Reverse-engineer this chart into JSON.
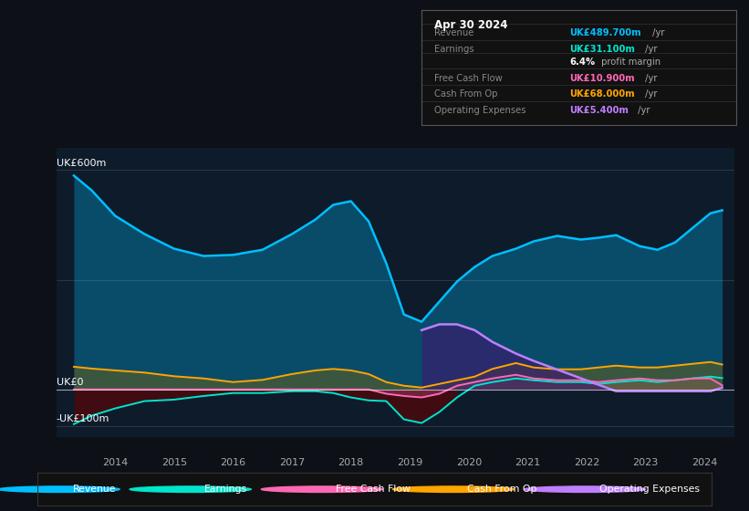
{
  "bg_color": "#0d1117",
  "plot_bg_color": "#0d1b2a",
  "info_box": {
    "date": "Apr 30 2024",
    "rows": [
      {
        "label": "Revenue",
        "value": "UK£489.700m",
        "unit": " /yr",
        "color": "#00bfff"
      },
      {
        "label": "Earnings",
        "value": "UK£31.100m",
        "unit": " /yr",
        "color": "#00e5cc"
      },
      {
        "label": "",
        "value": "6.4%",
        "unit": " profit margin",
        "color": "#ffffff"
      },
      {
        "label": "Free Cash Flow",
        "value": "UK£10.900m",
        "unit": " /yr",
        "color": "#ff69b4"
      },
      {
        "label": "Cash From Op",
        "value": "UK£68.000m",
        "unit": " /yr",
        "color": "#ffa500"
      },
      {
        "label": "Operating Expenses",
        "value": "UK£5.400m",
        "unit": " /yr",
        "color": "#bf7fff"
      }
    ]
  },
  "ylabel_top": "UK£600m",
  "ylabel_zero": "UK£0",
  "ylabel_neg": "-UK£100m",
  "ylim": [
    -130,
    660
  ],
  "legend": [
    {
      "label": "Revenue",
      "color": "#00bfff"
    },
    {
      "label": "Earnings",
      "color": "#00e5cc"
    },
    {
      "label": "Free Cash Flow",
      "color": "#ff69b4"
    },
    {
      "label": "Cash From Op",
      "color": "#ffa500"
    },
    {
      "label": "Operating Expenses",
      "color": "#bf7fff"
    }
  ],
  "series": {
    "years": [
      2013.3,
      2013.6,
      2014.0,
      2014.5,
      2015.0,
      2015.5,
      2016.0,
      2016.5,
      2017.0,
      2017.4,
      2017.7,
      2018.0,
      2018.3,
      2018.6,
      2018.9,
      2019.2,
      2019.5,
      2019.8,
      2020.1,
      2020.4,
      2020.8,
      2021.1,
      2021.5,
      2021.9,
      2022.2,
      2022.5,
      2022.9,
      2023.2,
      2023.5,
      2023.8,
      2024.1,
      2024.3
    ],
    "revenue": [
      585,
      545,
      475,
      425,
      385,
      365,
      368,
      382,
      425,
      465,
      505,
      515,
      460,
      345,
      205,
      185,
      240,
      295,
      335,
      365,
      385,
      405,
      420,
      410,
      415,
      422,
      392,
      382,
      402,
      442,
      482,
      490
    ],
    "earnings": [
      -95,
      -72,
      -52,
      -32,
      -28,
      -18,
      -10,
      -10,
      -5,
      -5,
      -10,
      -22,
      -30,
      -32,
      -82,
      -92,
      -62,
      -22,
      10,
      20,
      30,
      25,
      20,
      20,
      15,
      20,
      25,
      20,
      25,
      30,
      35,
      31
    ],
    "fcf": [
      0,
      0,
      0,
      0,
      0,
      0,
      0,
      0,
      0,
      0,
      0,
      0,
      0,
      -12,
      -18,
      -22,
      -12,
      10,
      20,
      30,
      40,
      30,
      25,
      25,
      20,
      25,
      30,
      25,
      25,
      30,
      30,
      11
    ],
    "cashfromop": [
      62,
      57,
      52,
      46,
      36,
      30,
      20,
      26,
      42,
      52,
      56,
      52,
      42,
      20,
      10,
      5,
      15,
      25,
      35,
      56,
      72,
      60,
      55,
      55,
      60,
      65,
      60,
      60,
      65,
      70,
      75,
      68
    ],
    "opex": [
      0,
      0,
      0,
      0,
      0,
      0,
      0,
      0,
      0,
      0,
      0,
      0,
      0,
      0,
      0,
      162,
      178,
      178,
      162,
      130,
      98,
      78,
      0,
      0,
      0,
      -5,
      -5,
      -5,
      -5,
      -5,
      -5,
      5
    ]
  }
}
